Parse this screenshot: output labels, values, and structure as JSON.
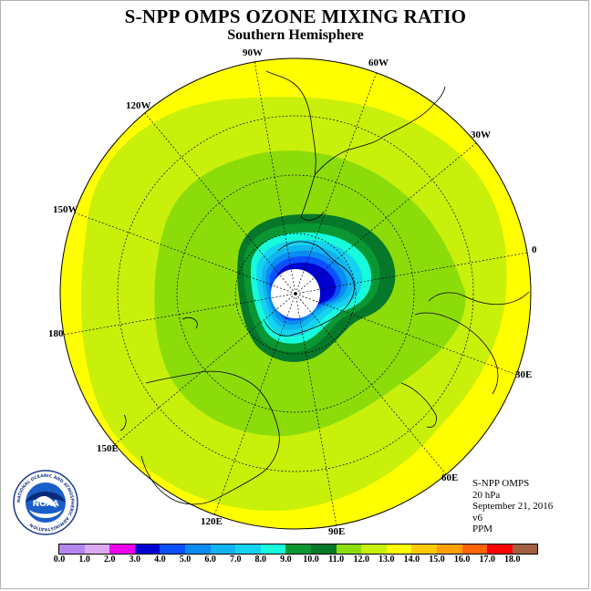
{
  "title": "S-NPP OMPS OZONE MIXING RATIO",
  "subtitle": "Southern Hemisphere",
  "lon_labels": {
    "w90": "90W",
    "w60": "60W",
    "w30": "30W",
    "e0": "0",
    "e30": "30E",
    "e60": "60E",
    "e90": "90E",
    "e120": "120E",
    "e150": "150E",
    "e180": "180",
    "w150": "150W",
    "w120": "120W"
  },
  "info": {
    "instrument": "S-NPP OMPS",
    "level": "20 hPa",
    "date": "September 21, 2016",
    "version": "v6",
    "units": "PPM"
  },
  "logo": {
    "text": "NOAA",
    "ring_text": "NATIONAL OCEANIC AND ATMOSPHERIC ADMINISTRATION",
    "icon": "noaa-logo-icon"
  },
  "colorbar": {
    "labels": [
      "0.0",
      "1.0",
      "2.0",
      "3.0",
      "4.0",
      "5.0",
      "6.0",
      "7.0",
      "8.0",
      "9.0",
      "10.0",
      "11.0",
      "12.0",
      "13.0",
      "14.0",
      "15.0",
      "16.0",
      "17.0",
      "18.0"
    ],
    "colors": [
      "#b686f0",
      "#dcaaf0",
      "#f000f0",
      "#0000d0",
      "#0a50ff",
      "#0a8cf0",
      "#10b4f0",
      "#14d2f0",
      "#18fadc",
      "#0a9632",
      "#06782a",
      "#8cdc0a",
      "#c8f00a",
      "#ffff00",
      "#ffc800",
      "#ffa000",
      "#ff6400",
      "#ff0000",
      "#a06040"
    ]
  },
  "field_colors": {
    "outer": "#ffff00",
    "band12": "#c8f00a",
    "band11": "#8cdc0a",
    "band10": "#06782a",
    "band9": "#0a9632",
    "band8": "#18fadc",
    "band7": "#14d2f0",
    "band6": "#10b4f0",
    "band5": "#0a8cf0",
    "band4": "#0a50ff",
    "band3": "#0000d0",
    "nodata": "#ffffff"
  }
}
